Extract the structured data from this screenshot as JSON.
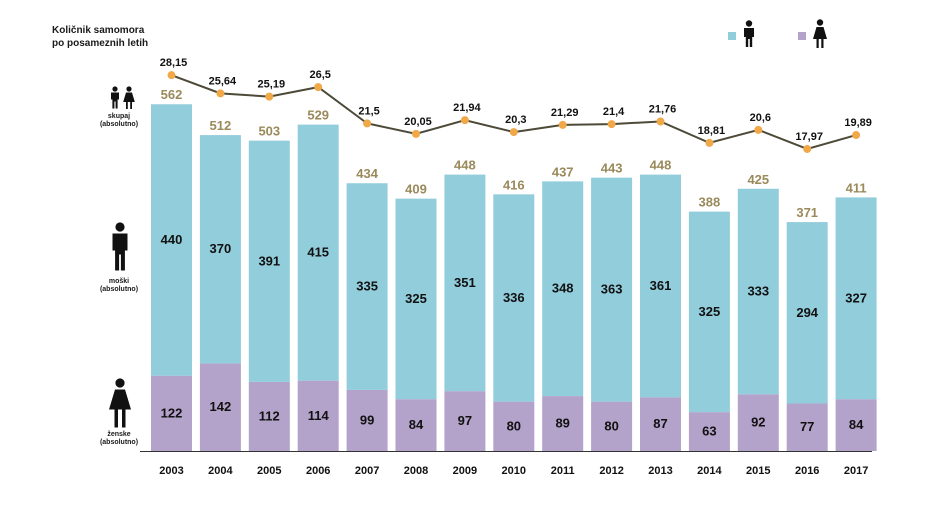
{
  "chart_data": {
    "type": "bar",
    "stacked": true,
    "title": "Količnik samomora po posameznih letih",
    "categories": [
      "2003",
      "2004",
      "2005",
      "2006",
      "2007",
      "2008",
      "2009",
      "2010",
      "2011",
      "2012",
      "2013",
      "2014",
      "2015",
      "2016",
      "2017"
    ],
    "series": [
      {
        "name": "ženske (absolutno)",
        "color": "#b3a2c9",
        "values": [
          122,
          142,
          112,
          114,
          99,
          84,
          97,
          80,
          89,
          80,
          87,
          63,
          92,
          77,
          84
        ]
      },
      {
        "name": "moški (absolutno)",
        "color": "#92cddc",
        "values": [
          440,
          370,
          391,
          415,
          335,
          325,
          351,
          336,
          348,
          363,
          361,
          325,
          333,
          294,
          327
        ]
      }
    ],
    "totals": {
      "name": "skupaj (absolutno)",
      "color": "#9a8a5b",
      "values": [
        562,
        512,
        503,
        529,
        434,
        409,
        448,
        416,
        437,
        443,
        448,
        388,
        425,
        371,
        411
      ]
    },
    "line": {
      "name": "količnik samomora",
      "line_color": "#4d4a38",
      "marker_color": "#f0a848",
      "values": [
        28.15,
        25.64,
        25.19,
        26.5,
        21.5,
        20.05,
        21.94,
        20.3,
        21.29,
        21.4,
        21.76,
        18.81,
        20.6,
        17.97,
        19.89
      ],
      "labels": [
        "28,15",
        "25,64",
        "25,19",
        "26,5",
        "21,5",
        "20,05",
        "21,94",
        "20,3",
        "21,29",
        "21,4",
        "21,76",
        "18,81",
        "20,6",
        "17,97",
        "19,89"
      ]
    }
  },
  "labels": {
    "title_line1": "Količnik samomora",
    "title_line2": "po posameznih letih",
    "total_label_1": "skupaj",
    "total_label_2": "(absolutno)",
    "male_label_1": "moški",
    "male_label_2": "(absolutno)",
    "female_label_1": "ženske",
    "female_label_2": "(absolutno)"
  },
  "legend": [
    {
      "name": "male-icon",
      "color": "#92cddc"
    },
    {
      "name": "female-icon",
      "color": "#b3a2c9"
    }
  ]
}
